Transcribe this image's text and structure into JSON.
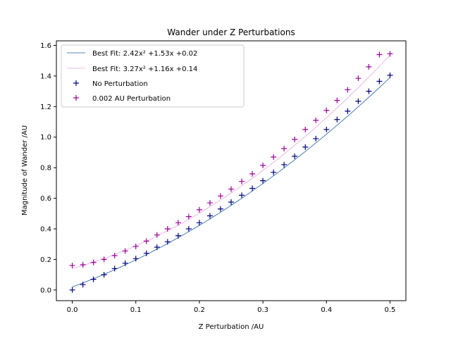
{
  "chart_data": {
    "type": "scatter",
    "title": "Wander under Z Perturbations",
    "xlabel": "Z Perturbation /AU",
    "ylabel": "Magnitude of Wander /AU",
    "xlim": [
      -0.025,
      0.525
    ],
    "ylim": [
      -0.07,
      1.63
    ],
    "x_ticks": [
      "0.0",
      "0.1",
      "0.2",
      "0.3",
      "0.4",
      "0.5"
    ],
    "y_ticks": [
      "0.0",
      "0.2",
      "0.4",
      "0.6",
      "0.8",
      "1.0",
      "1.2",
      "1.4",
      "1.6"
    ],
    "grid": false,
    "legend_position": "upper-left",
    "fits": [
      {
        "name": "Best Fit: 2.42x² +1.53x +0.02",
        "color": "#1f5fa8",
        "coefficients": [
          2.42,
          1.53,
          0.02
        ]
      },
      {
        "name": "Best Fit: 3.27x² +1.16x +0.14",
        "color": "#e8a5dc",
        "coefficients": [
          3.27,
          1.16,
          0.14
        ]
      }
    ],
    "series": [
      {
        "name": "No Perturbation",
        "color": "#000080",
        "marker": "+",
        "x": [
          0.0,
          0.0167,
          0.0333,
          0.05,
          0.0667,
          0.0833,
          0.1,
          0.1167,
          0.1333,
          0.15,
          0.1667,
          0.1833,
          0.2,
          0.2167,
          0.2333,
          0.25,
          0.2667,
          0.2833,
          0.3,
          0.3167,
          0.3333,
          0.35,
          0.3667,
          0.3833,
          0.4,
          0.4167,
          0.4333,
          0.45,
          0.4667,
          0.4833,
          0.5
        ],
        "y": [
          0.0,
          0.035,
          0.07,
          0.1,
          0.14,
          0.175,
          0.205,
          0.24,
          0.28,
          0.315,
          0.355,
          0.4,
          0.44,
          0.485,
          0.53,
          0.575,
          0.62,
          0.665,
          0.715,
          0.77,
          0.82,
          0.875,
          0.935,
          0.99,
          1.05,
          1.115,
          1.17,
          1.235,
          1.3,
          1.365,
          1.405
        ]
      },
      {
        "name": "0.002 AU Perturbation",
        "color": "#9b009b",
        "marker": "+",
        "x": [
          0.0,
          0.0167,
          0.0333,
          0.05,
          0.0667,
          0.0833,
          0.1,
          0.1167,
          0.1333,
          0.15,
          0.1667,
          0.1833,
          0.2,
          0.2167,
          0.2333,
          0.25,
          0.2667,
          0.2833,
          0.3,
          0.3167,
          0.3333,
          0.35,
          0.3667,
          0.3833,
          0.4,
          0.4167,
          0.4333,
          0.45,
          0.4667,
          0.4833,
          0.5
        ],
        "y": [
          0.16,
          0.165,
          0.18,
          0.2,
          0.225,
          0.255,
          0.285,
          0.32,
          0.36,
          0.4,
          0.44,
          0.48,
          0.525,
          0.57,
          0.615,
          0.66,
          0.71,
          0.76,
          0.815,
          0.87,
          0.925,
          0.985,
          1.05,
          1.11,
          1.175,
          1.24,
          1.31,
          1.385,
          1.46,
          1.54,
          1.545
        ]
      }
    ]
  }
}
